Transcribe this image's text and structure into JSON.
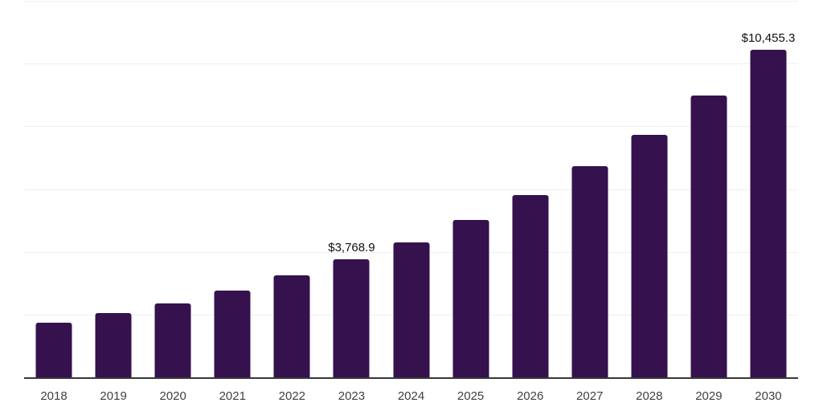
{
  "chart_data": {
    "type": "bar",
    "title": "",
    "xlabel": "",
    "ylabel": "",
    "categories": [
      "2018",
      "2019",
      "2020",
      "2021",
      "2022",
      "2023",
      "2024",
      "2025",
      "2026",
      "2027",
      "2028",
      "2029",
      "2030"
    ],
    "values": [
      1770,
      2075,
      2380,
      2790,
      3280,
      3768.9,
      4325,
      5020,
      5810,
      6730,
      7730,
      8985,
      10455.3
    ],
    "value_labels": [
      "",
      "",
      "",
      "",
      "",
      "$3,768.9",
      "",
      "",
      "",
      "",
      "",
      "",
      "$10,455.3"
    ],
    "ylim": [
      0,
      12000
    ],
    "grid_step": 2000,
    "grid": "horizontal-only",
    "legend": "none",
    "y_axis_tick_labels_visible": false,
    "bar_color": "#35114e",
    "grid_color": "#efefef",
    "axis_color": "#383838",
    "tick_label_color": "#3f3f3f",
    "value_label_color": "#101010"
  }
}
